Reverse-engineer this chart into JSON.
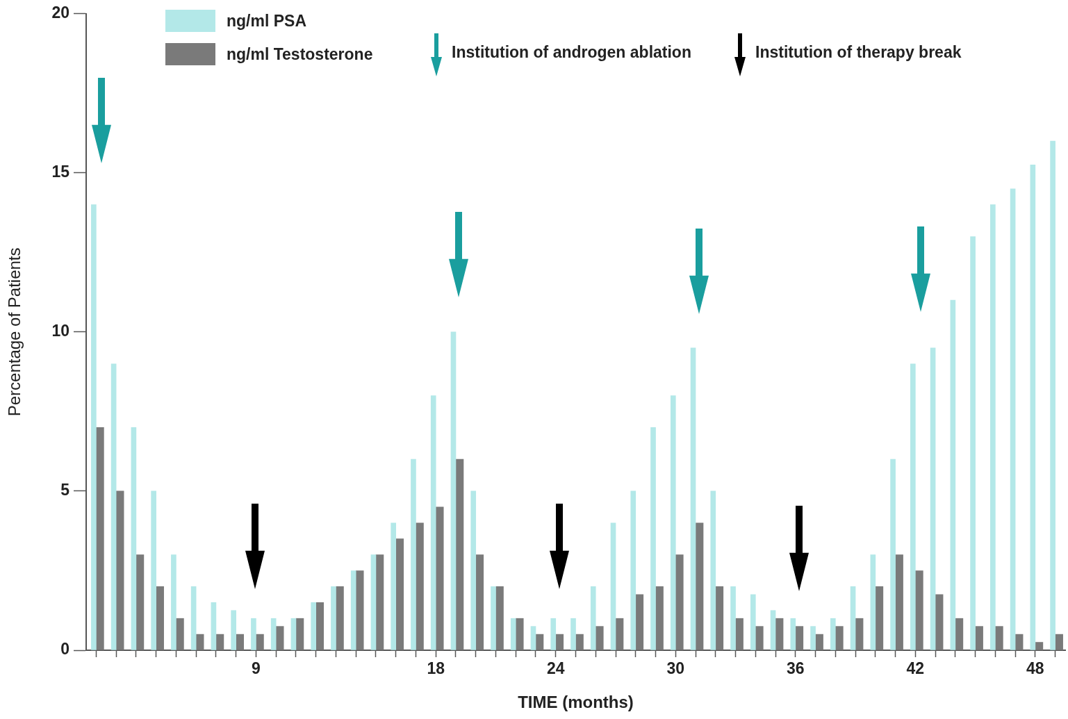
{
  "chart_data": {
    "type": "bar",
    "xlabel": "TIME (months)",
    "ylabel": "Percentage of Patients",
    "categories": [
      null,
      null,
      null,
      null,
      null,
      null,
      null,
      null,
      "9",
      null,
      null,
      null,
      null,
      null,
      null,
      null,
      null,
      "18",
      null,
      null,
      null,
      null,
      null,
      "24",
      null,
      null,
      null,
      null,
      null,
      "30",
      null,
      null,
      null,
      null,
      null,
      "36",
      null,
      null,
      null,
      null,
      null,
      "42",
      null,
      null,
      null,
      null,
      null,
      "48",
      null
    ],
    "series": [
      {
        "name": "ng/ml PSA",
        "color": "#b3e8e8",
        "values": [
          14,
          9,
          7,
          5,
          3,
          2,
          1.5,
          1.25,
          1,
          1,
          1,
          1.5,
          2,
          2.5,
          3,
          4,
          6,
          8,
          10,
          5,
          2,
          1,
          0.75,
          1,
          1,
          2,
          4,
          5,
          7,
          8,
          9.5,
          5,
          2,
          1.75,
          1.25,
          1,
          0.75,
          1,
          2,
          3,
          6,
          9,
          9.5,
          11,
          13,
          14,
          14.5,
          15.25,
          16
        ]
      },
      {
        "name": "ng/ml Testosterone",
        "color": "#7a7a7a",
        "values": [
          7,
          5,
          3,
          2,
          1,
          0.5,
          0.5,
          0.5,
          0.5,
          0.75,
          1,
          1.5,
          2,
          2.5,
          3,
          3.5,
          4,
          4.5,
          6,
          3,
          2,
          1,
          0.5,
          0.5,
          0.5,
          0.75,
          1,
          1.75,
          2,
          3,
          4,
          2,
          1,
          0.75,
          1,
          0.75,
          0.5,
          0.75,
          1,
          2,
          3,
          2.5,
          1.75,
          1,
          0.75,
          0.75,
          0.5,
          0.25,
          0.5
        ]
      }
    ],
    "ylim": [
      0,
      20
    ],
    "yticks": [
      0,
      5,
      10,
      15,
      20
    ],
    "grid": false,
    "legend": "top left",
    "annotations": [
      "Institution of androgen ablation",
      "Institution of therapy break"
    ]
  }
}
